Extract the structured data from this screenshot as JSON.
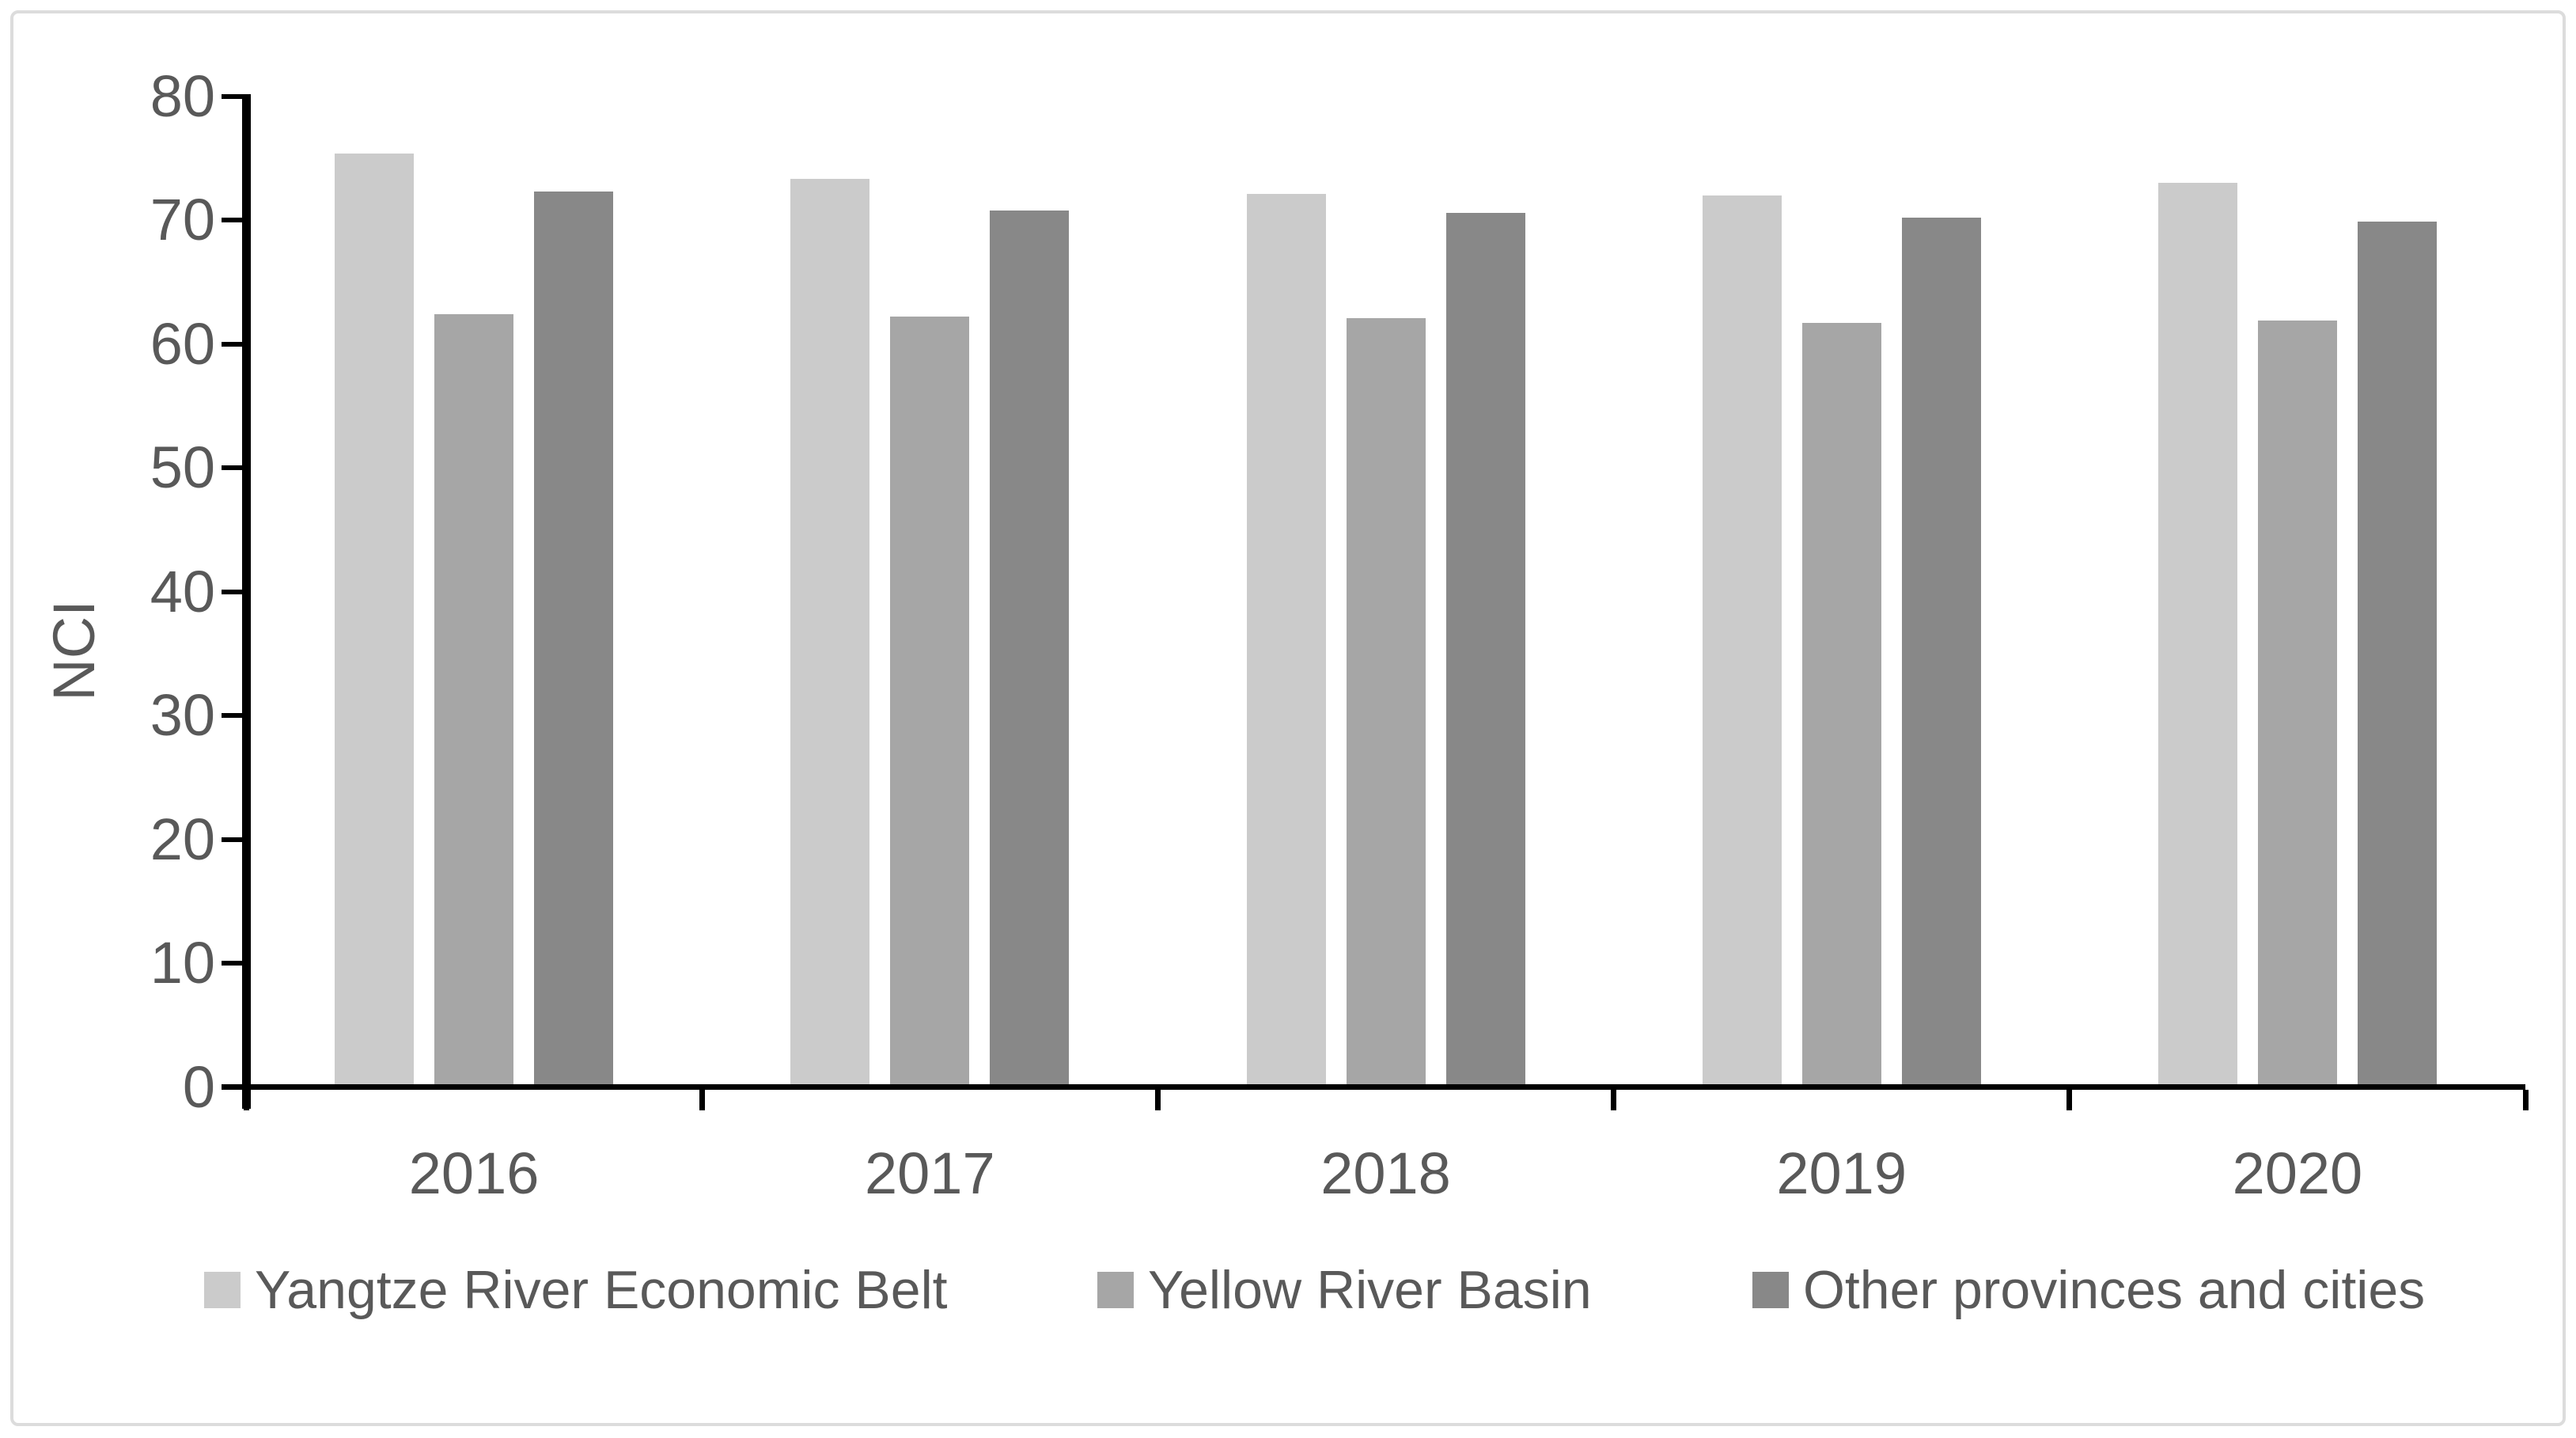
{
  "chart_data": {
    "type": "bar",
    "title": "",
    "xlabel": "",
    "ylabel": "NCI",
    "categories": [
      "2016",
      "2017",
      "2018",
      "2019",
      "2020"
    ],
    "series": [
      {
        "name": "Yangtze River Economic Belt",
        "color": "#cbcbcb",
        "values": [
          75.2,
          73.1,
          71.9,
          71.8,
          72.8
        ]
      },
      {
        "name": "Yellow River Basin",
        "color": "#a6a6a6",
        "values": [
          62.2,
          62.0,
          61.9,
          61.5,
          61.7
        ]
      },
      {
        "name": "Other provinces and cities",
        "color": "#888888",
        "values": [
          72.1,
          70.6,
          70.4,
          70.0,
          69.7
        ]
      }
    ],
    "ylim": [
      0,
      80
    ],
    "yticks": [
      0,
      10,
      20,
      30,
      40,
      50,
      60,
      70,
      80
    ],
    "grid": false,
    "legend_position": "bottom"
  },
  "colors": {
    "axis": "#000000",
    "label_text": "#595959",
    "frame_border": "#dcdcdc",
    "background": "#ffffff"
  }
}
